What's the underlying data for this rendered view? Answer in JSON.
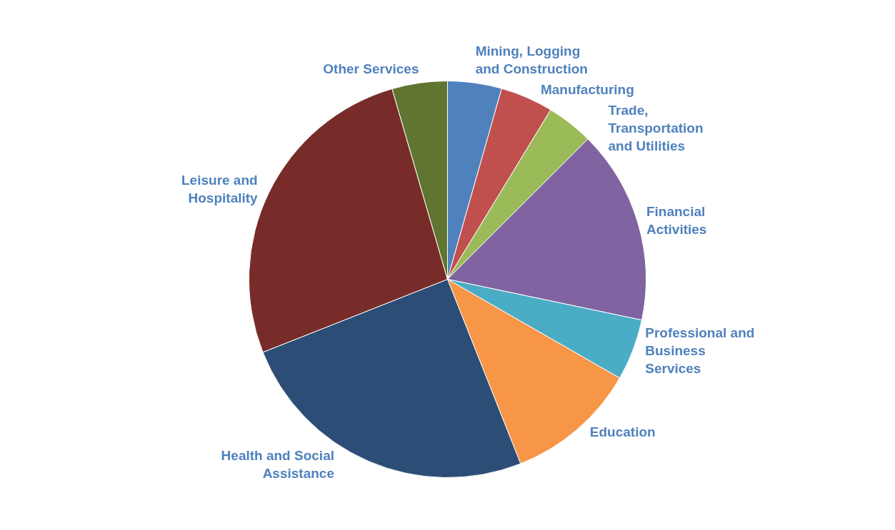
{
  "chart_data": {
    "type": "pie",
    "categories": [
      "Mining, Logging and Construction",
      "Manufacturing",
      "Trade, Transportation and Utilities",
      "Financial Activities",
      "Professional and Business Services",
      "Education",
      "Health and Social Assistance",
      "Leisure and Hospitality",
      "Other Services"
    ],
    "values": [
      4.4,
      4.3,
      3.8,
      15.8,
      5.0,
      10.7,
      25.0,
      26.5,
      4.5
    ],
    "colors": [
      "#4f81bd",
      "#c0504d",
      "#9bbb59",
      "#8064a2",
      "#4bacc6",
      "#f79646",
      "#2c4d75",
      "#772c2a",
      "#5f7530"
    ],
    "legend": false
  }
}
